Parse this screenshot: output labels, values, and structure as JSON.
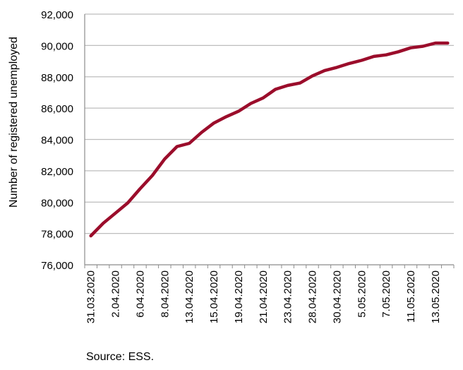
{
  "chart_data": {
    "type": "line",
    "title": "",
    "xlabel": "",
    "ylabel": "Number of registered unemployed",
    "ylim": [
      76000,
      92000
    ],
    "y_ticks": [
      "76,000",
      "78,000",
      "80,000",
      "82,000",
      "84,000",
      "86,000",
      "88,000",
      "90,000",
      "92,000"
    ],
    "grid": "horizontal",
    "legend": "none",
    "line_color": "#9b0d2b",
    "x_tick_labels": [
      "31.03.2020",
      "2.04.2020",
      "6.04.2020",
      "8.04.2020",
      "13.04.2020",
      "15.04.2020",
      "19.04.2020",
      "21.04.2020",
      "23.04.2020",
      "28.04.2020",
      "30.04.2020",
      "5.05.2020",
      "7.05.2020",
      "11.05.2020",
      "13.05.2020"
    ],
    "series": [
      {
        "values": [
          77850,
          78650,
          79300,
          79950,
          80850,
          81700,
          82750,
          83550,
          83750,
          84450,
          85050,
          85450,
          85800,
          86300,
          86650,
          87200,
          87450,
          87600,
          88050,
          88400,
          88600,
          88850,
          89050,
          89300,
          89400,
          89600,
          89850,
          89950,
          90150,
          90150
        ]
      }
    ]
  },
  "source": "Source: ESS."
}
